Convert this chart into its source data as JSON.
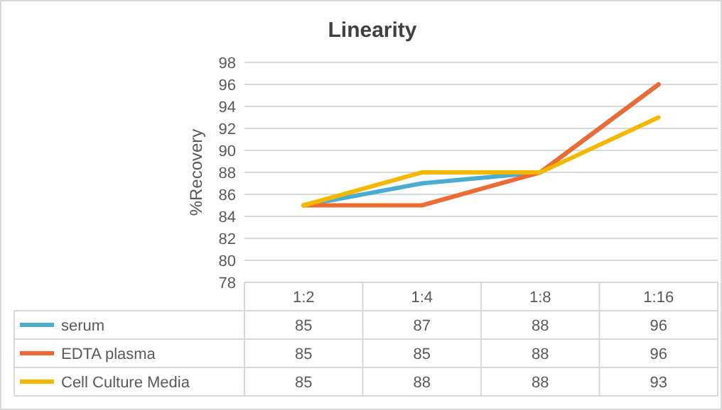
{
  "chart_data": {
    "type": "line",
    "title": "Linearity",
    "ylabel": "%Recovery",
    "categories": [
      "1:2",
      "1:4",
      "1:8",
      "1:16"
    ],
    "series": [
      {
        "name": "serum",
        "color": "#4aacd0",
        "values": [
          85,
          87,
          88,
          96
        ]
      },
      {
        "name": "EDTA plasma",
        "color": "#ef6a32",
        "values": [
          85,
          85,
          88,
          96
        ]
      },
      {
        "name": "Cell Culture Media",
        "color": "#f5b800",
        "values": [
          85,
          88,
          88,
          93
        ]
      }
    ],
    "ylim": [
      78,
      98
    ],
    "yticks": [
      78,
      80,
      82,
      84,
      86,
      88,
      90,
      92,
      94,
      96,
      98
    ],
    "grid": "y",
    "legend": "bottom",
    "data_labels": true,
    "marker": "none",
    "line_style": "solid"
  }
}
